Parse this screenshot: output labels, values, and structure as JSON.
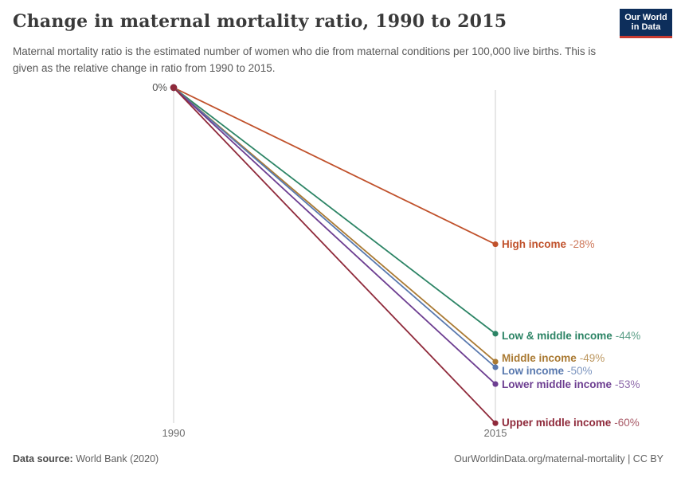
{
  "header": {
    "title": "Change in maternal mortality ratio, 1990 to 2015",
    "subtitle": "Maternal mortality ratio is the estimated number of women who die from maternal conditions per 100,000 live births. This is given as the relative change in ratio from 1990 to 2015.",
    "logo": {
      "line1": "Our World",
      "line2": "in Data",
      "bg_color": "#0d2e5b",
      "accent_color": "#c73a30"
    }
  },
  "chart_data": {
    "type": "line",
    "subtype": "slope",
    "categories": [
      "1990",
      "2015"
    ],
    "y_tick_label": "0%",
    "ylim": [
      -60,
      0
    ],
    "grid": false,
    "legend_position": "right-of-endpoints",
    "axis_color": "#cfcfcf",
    "series": [
      {
        "name": "High income",
        "values": [
          0,
          -28
        ],
        "display_value": "-28%",
        "color": "#c0512b",
        "label_dy": 0
      },
      {
        "name": "Low & middle income",
        "values": [
          0,
          -44
        ],
        "display_value": "-44%",
        "color": "#2c8465",
        "label_dy": 3
      },
      {
        "name": "Middle income",
        "values": [
          0,
          -49
        ],
        "display_value": "-49%",
        "color": "#aa7a33",
        "label_dy": -4
      },
      {
        "name": "Low income",
        "values": [
          0,
          -50
        ],
        "display_value": "-50%",
        "color": "#5878ae",
        "label_dy": 5
      },
      {
        "name": "Lower middle income",
        "values": [
          0,
          -53
        ],
        "display_value": "-53%",
        "color": "#6d3e91",
        "label_dy": 1
      },
      {
        "name": "Upper middle income",
        "values": [
          0,
          -60
        ],
        "display_value": "-60%",
        "color": "#8f2a3b",
        "label_dy": 0
      }
    ]
  },
  "footer": {
    "source_label": "Data source:",
    "source_value": "World Bank (2020)",
    "license": "OurWorldinData.org/maternal-mortality | CC BY"
  }
}
